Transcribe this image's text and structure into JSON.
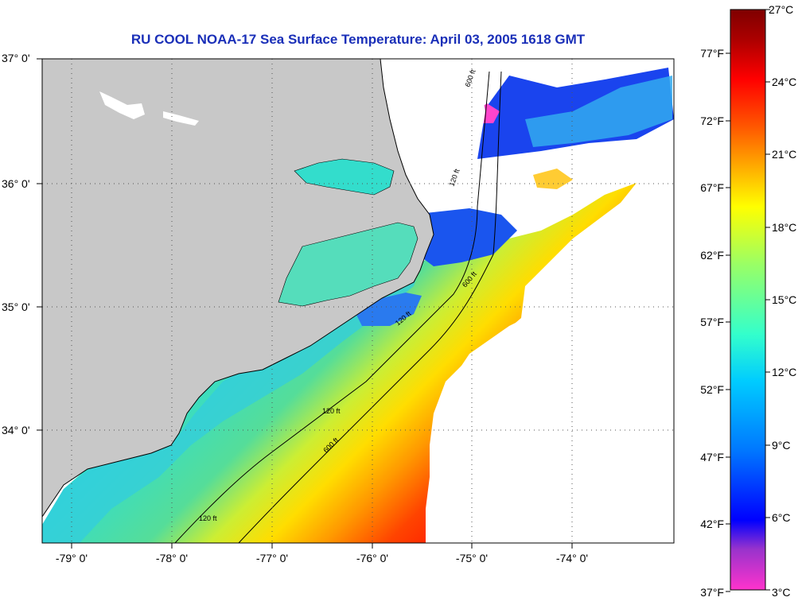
{
  "title": "RU COOL  NOAA-17  Sea Surface Temperature:  April 03, 2005 1618 GMT",
  "lat_labels": [
    "37° 0'",
    "36° 0'",
    "35° 0'",
    "34° 0'"
  ],
  "lon_labels": [
    "-79° 0'",
    "-78° 0'",
    "-77° 0'",
    "-76° 0'",
    "-75° 0'",
    "-74° 0'"
  ],
  "contour_labels": [
    "600 ft",
    "120 ft",
    "600 ft",
    "120 ft",
    "120 ft",
    "600 ft",
    "120 ft"
  ],
  "colorbar": {
    "celsius_labels": [
      "27°C",
      "24°C",
      "21°C",
      "18°C",
      "15°C",
      "12°C",
      "9°C",
      "6°C",
      "3°C"
    ],
    "fahrenheit_labels": [
      "77°F",
      "72°F",
      "67°F",
      "62°F",
      "57°F",
      "52°F",
      "47°F",
      "42°F",
      "37°F"
    ],
    "colors": [
      "#ff33cc",
      "#9933cc",
      "#0000ff",
      "#0077ff",
      "#00ccff",
      "#33ffcc",
      "#99ff66",
      "#ffff00",
      "#ffaa00",
      "#ff5500",
      "#ff0000",
      "#aa0000",
      "#7f0000"
    ]
  },
  "colors": {
    "land": "#c8c8c8",
    "no_data": "#ffffff",
    "title": "#1a2fb8"
  }
}
